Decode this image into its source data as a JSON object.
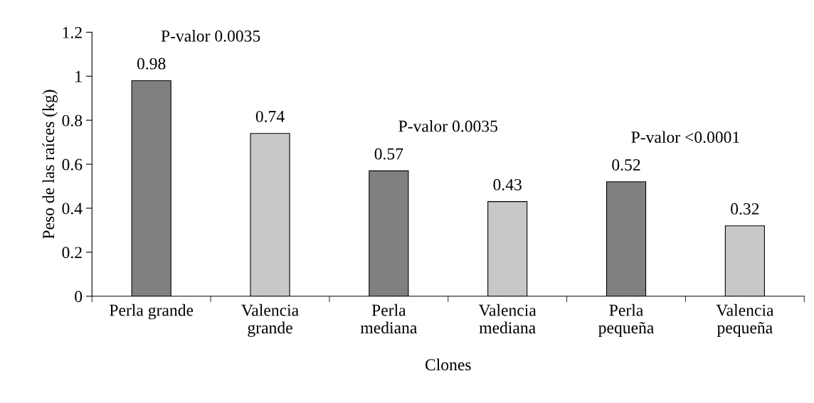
{
  "chart_data": {
    "type": "bar",
    "categories": [
      "Perla grande",
      "Valencia\ngrande",
      "Perla\nmediana",
      "Valencia\nmediana",
      "Perla\npequeña",
      "Valencia\npequeña"
    ],
    "values": [
      0.98,
      0.74,
      0.57,
      0.43,
      0.52,
      0.32
    ],
    "colors": [
      "#808080",
      "#c8c8c8",
      "#808080",
      "#c8c8c8",
      "#808080",
      "#c8c8c8"
    ],
    "data_labels": true,
    "xlabel": "Clones",
    "ylabel": "Peso de las raíces (kg)",
    "ylim": [
      0,
      1.2
    ],
    "yticks": [
      0,
      0.2,
      0.4,
      0.6,
      0.8,
      1,
      1.2
    ],
    "annotations": [
      "P-valor 0.0035",
      "P-valor 0.0035",
      "P-valor <0.0001"
    ],
    "grid": false,
    "legend": false
  }
}
